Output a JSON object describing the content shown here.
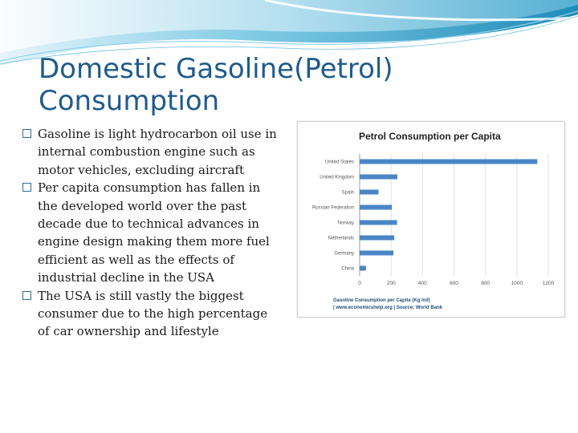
{
  "slide": {
    "title_lines": [
      "Domestic Gasoline(Petrol)",
      "Consumption"
    ],
    "bullets": [
      "Gasoline is light hydrocarbon oil use in internal combustion engine such as motor vehicles, excluding aircraft",
      "Per capita consumption has fallen in the developed world  over the past decade due to technical advances in engine design making them more fuel efficient as well as the effects of industrial decline in the USA",
      "The USA is still vastly the biggest consumer due to the high percentage of car ownership and lifestyle"
    ]
  },
  "colors": {
    "title": "#1f5b8c",
    "bar": "#4a86c6",
    "banner_dark": "#1f8cb8",
    "banner_light": "#bfe4f2"
  },
  "chart_data": {
    "type": "bar",
    "orientation": "horizontal",
    "title": "Petrol Consumption per Capita",
    "categories": [
      "United States",
      "United Kingdom",
      "Spain",
      "Russian Federation",
      "Norway",
      "Netherlands",
      "Germany",
      "China"
    ],
    "values": [
      1130,
      240,
      120,
      205,
      238,
      220,
      215,
      40
    ],
    "xlim": [
      0,
      1200
    ],
    "xticks": [
      "0",
      "200",
      "400",
      "600",
      "800",
      "1000",
      "1200"
    ],
    "xlabel_lines": [
      "Gasoline Consumption per Capita (Kg /oil)",
      "| www.economicshelp.org | Source: World Bank"
    ],
    "ylabel": "",
    "grid": true
  }
}
